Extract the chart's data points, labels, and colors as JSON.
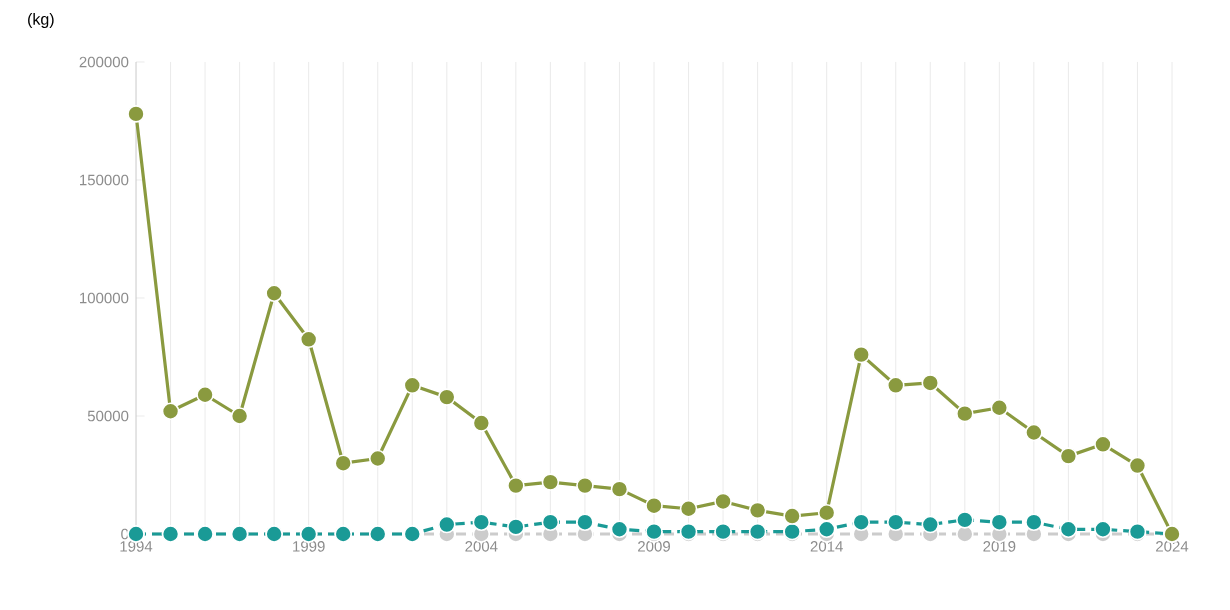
{
  "chart_data": {
    "type": "line",
    "ylabel": "(kg)",
    "x": [
      1994,
      1995,
      1996,
      1997,
      1998,
      1999,
      2000,
      2001,
      2002,
      2003,
      2004,
      2005,
      2006,
      2007,
      2008,
      2009,
      2010,
      2011,
      2012,
      2013,
      2014,
      2015,
      2016,
      2017,
      2018,
      2019,
      2020,
      2021,
      2022,
      2023,
      2024
    ],
    "series": [
      {
        "color": "#cccccc",
        "line_style": "dashed",
        "values": [
          0,
          0,
          0,
          0,
          0,
          0,
          0,
          0,
          0,
          0,
          0,
          0,
          0,
          0,
          0,
          0,
          0,
          0,
          0,
          0,
          0,
          0,
          0,
          0,
          0,
          0,
          0,
          0,
          0,
          0,
          0
        ]
      },
      {
        "color": "#1a9a96",
        "line_style": "dashed",
        "values": [
          0,
          0,
          0,
          0,
          0,
          0,
          0,
          0,
          0,
          4000,
          5000,
          3000,
          5000,
          5000,
          2000,
          1000,
          1000,
          1000,
          1000,
          1000,
          2000,
          5000,
          5000,
          4000,
          6000,
          5000,
          5000,
          2000,
          2000,
          1000,
          0
        ]
      },
      {
        "color": "#8a9a3f",
        "line_style": "solid",
        "values": [
          178000,
          52000,
          59000,
          50000,
          102000,
          82500,
          30000,
          32000,
          63000,
          58000,
          47000,
          20500,
          22000,
          20500,
          19000,
          12000,
          10700,
          13800,
          10000,
          7600,
          9000,
          76000,
          63000,
          64000,
          51000,
          53500,
          43000,
          33000,
          38000,
          29000,
          0
        ]
      }
    ],
    "marker": "circle",
    "grid": "x",
    "ylim": [
      0,
      200000
    ],
    "yticks": [
      0,
      50000,
      100000,
      150000,
      200000
    ],
    "xlim": [
      1994,
      2024
    ],
    "xticks": [
      1994,
      {
        "value": 1995,
        "label": null
      },
      {
        "value": 1996,
        "label": null
      },
      {
        "value": 1997,
        "label": null
      },
      {
        "value": 1998,
        "label": null
      },
      1999,
      {
        "value": 2000,
        "label": null
      },
      {
        "value": 2001,
        "label": null
      },
      {
        "value": 2002,
        "label": null
      },
      {
        "value": 2003,
        "label": null
      },
      2004,
      {
        "value": 2005,
        "label": null
      },
      {
        "value": 2006,
        "label": null
      },
      {
        "value": 2007,
        "label": null
      },
      {
        "value": 2008,
        "label": null
      },
      2009,
      {
        "value": 2010,
        "label": null
      },
      {
        "value": 2011,
        "label": null
      },
      {
        "value": 2012,
        "label": null
      },
      {
        "value": 2013,
        "label": null
      },
      2014,
      {
        "value": 2015,
        "label": null
      },
      {
        "value": 2016,
        "label": null
      },
      {
        "value": 2017,
        "label": null
      },
      {
        "value": 2018,
        "label": null
      },
      2019,
      {
        "value": 2020,
        "label": null
      },
      {
        "value": 2021,
        "label": null
      },
      {
        "value": 2022,
        "label": null
      },
      {
        "value": 2023,
        "label": null
      },
      2024
    ]
  }
}
